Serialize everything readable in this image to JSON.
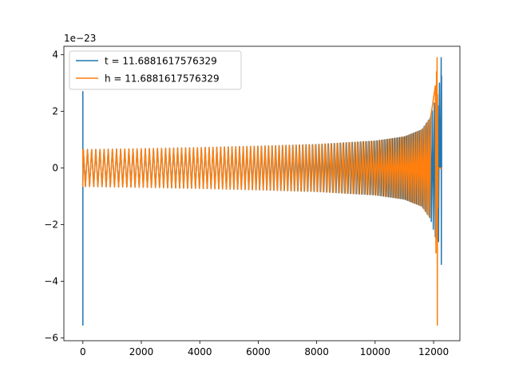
{
  "chart_data": {
    "type": "line",
    "title": "",
    "xlabel": "",
    "ylabel": "",
    "y_offset_label": "1e−23",
    "xlim": [
      -650,
      12900
    ],
    "ylim": [
      -6.1,
      4.3
    ],
    "x_ticks": [
      0,
      2000,
      4000,
      6000,
      8000,
      10000,
      12000
    ],
    "y_ticks": [
      -6,
      -4,
      -2,
      0,
      2,
      4
    ],
    "x_tick_labels": [
      "0",
      "2000",
      "4000",
      "6000",
      "8000",
      "10000",
      "12000"
    ],
    "y_tick_labels": [
      "−6",
      "−4",
      "−2",
      "0",
      "2",
      "4"
    ],
    "grid": false,
    "legend_position": "upper-left",
    "series": [
      {
        "name": "t = 11.6881617576329",
        "color": "#1f77b4",
        "description": "Gravitational-wave-like chirp signal, x-range roughly 0 to 12280; start spike to -5.55 and +2.7, merger spike reaching +3.9 and -3.4 near x=12280",
        "envelope_points": [
          [
            0,
            0.65
          ],
          [
            2000,
            0.68
          ],
          [
            4000,
            0.72
          ],
          [
            6000,
            0.77
          ],
          [
            8000,
            0.83
          ],
          [
            10000,
            0.95
          ],
          [
            11000,
            1.1
          ],
          [
            11600,
            1.35
          ],
          [
            11900,
            1.8
          ],
          [
            12100,
            2.6
          ],
          [
            12200,
            3.3
          ],
          [
            12270,
            3.9
          ]
        ]
      },
      {
        "name": "h = 11.6881617576329",
        "color": "#ff7f0e",
        "description": "Chirp signal, x-range roughly 0 to 12150; amplitude grows from about 0.65 to a merger peak of +3.9 / -5.55 near x=12130",
        "envelope_points": [
          [
            0,
            0.65
          ],
          [
            2000,
            0.68
          ],
          [
            4000,
            0.72
          ],
          [
            6000,
            0.77
          ],
          [
            8000,
            0.83
          ],
          [
            10000,
            0.95
          ],
          [
            11000,
            1.1
          ],
          [
            11600,
            1.35
          ],
          [
            11900,
            1.8
          ],
          [
            12050,
            2.6
          ],
          [
            12120,
            3.9
          ]
        ]
      }
    ]
  },
  "colors": {
    "axes": "#000000",
    "background": "#ffffff"
  }
}
